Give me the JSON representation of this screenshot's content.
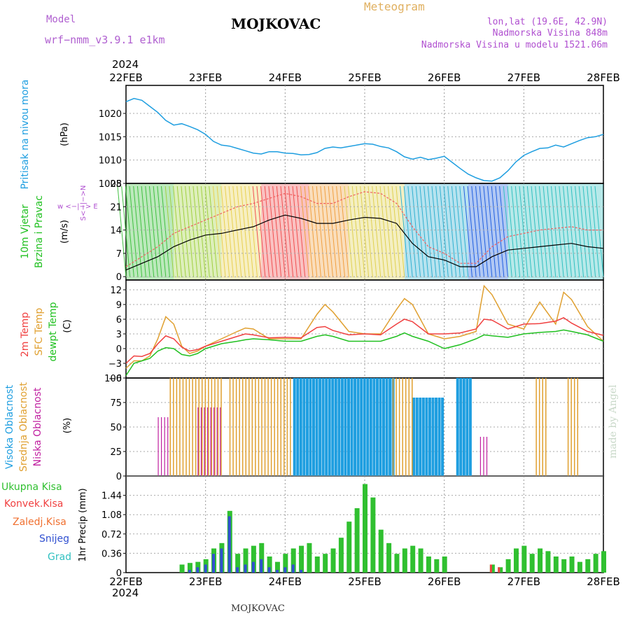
{
  "header": {
    "model_label": "Model",
    "model_value": "wrf−nmm_v3.9.1  e1km",
    "station": "MOJKOVAC",
    "product": "Meteogram",
    "lonlat": "lon,lat (19.6E, 42.9N)",
    "elevation": "Nadmorska Visina 848m",
    "model_elevation": "Nadmorska Visina u modelu 1521.06m",
    "year_top": "2024",
    "year_bottom": "2024",
    "footer_station": "MOJKOVAC",
    "signature": "made by Angel"
  },
  "colors": {
    "pressure": "#1e9ee0",
    "temp2m": "#f04040",
    "sfc": "#e0a030",
    "dewpt": "#20c020",
    "high_cloud": "#1e9ee0",
    "mid_cloud": "#e0a030",
    "low_cloud": "#c020a0",
    "precip_total": "#30c030",
    "precip_conv": "#f04040",
    "freezing": "#f07030",
    "snow": "#3050d0",
    "hail": "#30c0c0",
    "wind_label": "#20c020",
    "wind_compass": "#b050d0"
  },
  "chart_data": [
    {
      "type": "line",
      "name": "pressure",
      "xlabel": "",
      "x_ticks": [
        "22FEB",
        "23FEB",
        "24FEB",
        "25FEB",
        "26FEB",
        "27FEB",
        "28FEB"
      ],
      "ylabel_outer": "Pritisak na nivou mora",
      "ylabel_unit": "(hPa)",
      "ylim": [
        1005,
        1026
      ],
      "y_ticks": [
        "1005",
        "1010",
        "1015",
        "1020"
      ],
      "grid": true,
      "series": [
        {
          "name": "",
          "x": [
            0,
            0.1,
            0.2,
            0.3,
            0.4,
            0.5,
            0.6,
            0.7,
            0.8,
            0.9,
            1,
            1.1,
            1.2,
            1.3,
            1.4,
            1.5,
            1.6,
            1.7,
            1.8,
            1.9,
            2,
            2.1,
            2.2,
            2.3,
            2.4,
            2.5,
            2.6,
            2.7,
            2.8,
            2.9,
            3,
            3.1,
            3.2,
            3.3,
            3.4,
            3.5,
            3.6,
            3.7,
            3.8,
            3.9,
            4,
            4.1,
            4.2,
            4.3,
            4.4,
            4.5,
            4.6,
            4.7,
            4.8,
            4.9,
            5,
            5.1,
            5.2,
            5.3,
            5.4,
            5.5,
            5.6,
            5.7,
            5.8,
            5.9,
            6
          ],
          "values": [
            1022.5,
            1023.2,
            1022.8,
            1021.5,
            1020.2,
            1018.5,
            1017.5,
            1017.8,
            1017.2,
            1016.5,
            1015.5,
            1014,
            1013.2,
            1013,
            1012.5,
            1012,
            1011.5,
            1011.3,
            1011.8,
            1011.8,
            1011.5,
            1011.4,
            1011.1,
            1011.2,
            1011.6,
            1012.5,
            1012.8,
            1012.6,
            1012.9,
            1013.2,
            1013.5,
            1013.4,
            1012.9,
            1012.6,
            1011.8,
            1010.7,
            1010.2,
            1010.6,
            1010.1,
            1010.4,
            1010.8,
            1009.5,
            1008.2,
            1007,
            1006.2,
            1005.6,
            1005.5,
            1006.2,
            1007.7,
            1009.6,
            1011,
            1011.8,
            1012.5,
            1012.6,
            1013.2,
            1012.8,
            1013.5,
            1014.2,
            1014.8,
            1015,
            1015.5
          ]
        }
      ]
    },
    {
      "type": "line",
      "name": "wind",
      "xlabel": "",
      "ylabel_outer_1": "10m Vjetar",
      "ylabel_outer_2": "Brzina i Pravac",
      "ylabel_unit": "(m/s)",
      "compass": "w <−|−> E",
      "compass_v": "S<−|−>N",
      "ylim": [
        -1,
        28
      ],
      "y_ticks": [
        "0",
        "7",
        "14",
        "21",
        "28"
      ],
      "grid": true,
      "series": [
        {
          "name": "",
          "x": [
            0,
            0.2,
            0.4,
            0.6,
            0.8,
            1,
            1.2,
            1.4,
            1.6,
            1.8,
            2,
            2.2,
            2.4,
            2.6,
            2.8,
            3,
            3.2,
            3.4,
            3.6,
            3.8,
            4,
            4.2,
            4.4,
            4.6,
            4.8,
            5,
            5.2,
            5.4,
            5.6,
            5.8,
            6
          ],
          "values": [
            2,
            4,
            6,
            9,
            11,
            12.5,
            13,
            14,
            15,
            17,
            18.5,
            17.5,
            16,
            16,
            17,
            17.8,
            17.5,
            16,
            10,
            6,
            5,
            3,
            3,
            6,
            8,
            8.5,
            9,
            9.5,
            10,
            9,
            8.5
          ]
        },
        {
          "name": "",
          "x": [
            0,
            0.2,
            0.4,
            0.6,
            0.8,
            1,
            1.2,
            1.4,
            1.6,
            1.8,
            2,
            2.2,
            2.4,
            2.6,
            2.8,
            3,
            3.2,
            3.4,
            3.6,
            3.8,
            4,
            4.2,
            4.4,
            4.6,
            4.8,
            5,
            5.2,
            5.4,
            5.6,
            5.8,
            6
          ],
          "values": [
            3,
            6,
            9,
            13,
            15,
            17,
            19,
            21,
            22,
            23.5,
            25,
            24,
            22,
            22,
            24,
            25.5,
            25,
            22,
            15,
            9,
            7,
            4,
            4,
            9,
            12,
            13,
            14,
            14.5,
            15,
            14,
            14
          ]
        }
      ]
    },
    {
      "type": "line",
      "name": "temperature",
      "xlabel": "",
      "ylabel_outer_1": "2m Temp",
      "ylabel_outer_2": "SFC Temp",
      "ylabel_outer_3": "dewpt Temp",
      "ylabel_unit": "(C)",
      "ylim": [
        -6,
        14
      ],
      "y_ticks": [
        "−6",
        "−3",
        "0",
        "3",
        "6",
        "9",
        "12"
      ],
      "grid": true,
      "series": [
        {
          "name": "2m Temp",
          "x": [
            0,
            0.1,
            0.2,
            0.3,
            0.4,
            0.5,
            0.6,
            0.7,
            0.8,
            0.9,
            1,
            1.2,
            1.4,
            1.5,
            1.6,
            1.8,
            2,
            2.2,
            2.4,
            2.5,
            2.6,
            2.8,
            3,
            3.2,
            3.4,
            3.5,
            3.6,
            3.8,
            4,
            4.2,
            4.4,
            4.5,
            4.6,
            4.8,
            5,
            5.2,
            5.4,
            5.5,
            5.6,
            5.8,
            6
          ],
          "values": [
            -3,
            -1.5,
            -1.6,
            -1,
            1,
            2.6,
            2,
            0.3,
            -0.5,
            -0.2,
            0.5,
            1.5,
            2.5,
            3,
            2.8,
            2.2,
            2.3,
            2.2,
            4.3,
            4.5,
            3.7,
            2.8,
            3,
            2.8,
            5,
            6,
            5.5,
            3,
            3,
            3.2,
            4,
            6,
            5.8,
            4,
            5,
            5.1,
            5.6,
            6.3,
            5.2,
            3.5,
            2.7
          ]
        },
        {
          "name": "SFC Temp",
          "x": [
            0,
            0.1,
            0.2,
            0.3,
            0.4,
            0.5,
            0.6,
            0.7,
            0.8,
            0.9,
            1,
            1.2,
            1.4,
            1.5,
            1.6,
            1.8,
            2,
            2.2,
            2.4,
            2.5,
            2.6,
            2.8,
            3,
            3.2,
            3.4,
            3.5,
            3.6,
            3.8,
            4,
            4.2,
            4.4,
            4.5,
            4.6,
            4.8,
            5,
            5.2,
            5.4,
            5.5,
            5.6,
            5.8,
            6
          ],
          "values": [
            -4,
            -2.5,
            -2.5,
            -1.5,
            2,
            6.5,
            5,
            0.5,
            -1,
            -0.5,
            0.5,
            2,
            3.5,
            4.2,
            4,
            2,
            2,
            2,
            7,
            9,
            7.5,
            3.5,
            3,
            3,
            8,
            10.2,
            9,
            3,
            2,
            2.5,
            3.5,
            12.8,
            11,
            5,
            4,
            9.5,
            5,
            11.5,
            10,
            4.5,
            1.5
          ]
        },
        {
          "name": "dewpt Temp",
          "x": [
            0,
            0.1,
            0.2,
            0.3,
            0.4,
            0.5,
            0.6,
            0.7,
            0.8,
            0.9,
            1,
            1.2,
            1.4,
            1.5,
            1.6,
            1.8,
            2,
            2.2,
            2.4,
            2.5,
            2.6,
            2.8,
            3,
            3.2,
            3.4,
            3.5,
            3.6,
            3.8,
            4,
            4.2,
            4.4,
            4.5,
            4.6,
            4.8,
            5,
            5.2,
            5.4,
            5.5,
            5.6,
            5.8,
            6
          ],
          "values": [
            -5.5,
            -3,
            -2.5,
            -2,
            -0.5,
            0.2,
            0,
            -1.2,
            -1.5,
            -1,
            0,
            1,
            1.5,
            1.8,
            2,
            1.8,
            1.5,
            1.5,
            2.5,
            2.8,
            2.5,
            1.5,
            1.5,
            1.5,
            2.5,
            3.2,
            2.5,
            1.5,
            0,
            0.8,
            2,
            2.8,
            2.6,
            2.3,
            3,
            3.3,
            3.5,
            3.8,
            3.5,
            2.8,
            1.5
          ]
        }
      ]
    },
    {
      "type": "bar",
      "name": "clouds",
      "xlabel": "",
      "ylabel_outer_1": "Visoka Oblacnost",
      "ylabel_outer_2": "Srednja Oblacnost",
      "ylabel_outer_3": "Niska Oblacnost",
      "ylabel_unit": "(%)",
      "ylim": [
        0,
        100
      ],
      "y_ticks": [
        "0",
        "25",
        "50",
        "75",
        "100"
      ],
      "grid": true,
      "high": [
        [
          2.1,
          3.35,
          100
        ],
        [
          3.6,
          4.0,
          80
        ],
        [
          4.15,
          4.35,
          100
        ]
      ],
      "mid": [
        [
          0.55,
          1.2,
          100
        ],
        [
          1.3,
          2.1,
          100
        ],
        [
          3.35,
          3.6,
          100
        ],
        [
          5.15,
          5.3,
          100
        ],
        [
          5.55,
          5.7,
          100
        ]
      ],
      "low": [
        [
          0.4,
          0.55,
          60
        ],
        [
          0.9,
          1.2,
          70
        ],
        [
          4.45,
          4.55,
          40
        ]
      ]
    },
    {
      "type": "bar",
      "name": "precipitation",
      "xlabel": "",
      "ylabel_outer_1": "Ukupna Kisa",
      "ylabel_outer_2": "Konvek.Kisa",
      "ylabel_outer_3": "Zaledj.Kisa",
      "ylabel_outer_4": "Snijeg",
      "ylabel_outer_5": "Grad",
      "ylabel_unit": "1hr Precip (mm)",
      "ylim": [
        0,
        1.8
      ],
      "y_ticks": [
        "0",
        "0.36",
        "0.72",
        "1.08",
        "1.44"
      ],
      "grid": true,
      "total": [
        0,
        0,
        0,
        0,
        0,
        0,
        0,
        0.15,
        0.18,
        0.2,
        0.25,
        0.45,
        0.55,
        1.15,
        0.35,
        0.45,
        0.5,
        0.55,
        0.3,
        0.2,
        0.35,
        0.45,
        0.5,
        0.55,
        0.3,
        0.35,
        0.45,
        0.65,
        0.95,
        1.2,
        1.65,
        1.4,
        0.8,
        0.55,
        0.35,
        0.45,
        0.5,
        0.45,
        0.3,
        0.25,
        0.3,
        0,
        0,
        0,
        0,
        0,
        0.15,
        0.1,
        0.25,
        0.45,
        0.5,
        0.35,
        0.45,
        0.4,
        0.3,
        0.25,
        0.3,
        0.2,
        0.25,
        0.35,
        0.4
      ],
      "snow": [
        0,
        0,
        0,
        0,
        0,
        0,
        0,
        0,
        0.05,
        0.1,
        0.15,
        0.35,
        0.45,
        1.05,
        0.1,
        0.15,
        0.2,
        0.25,
        0.1,
        0.05,
        0.1,
        0.15,
        0.05,
        0,
        0,
        0,
        0,
        0,
        0,
        0,
        0,
        0,
        0,
        0,
        0,
        0,
        0,
        0,
        0,
        0,
        0,
        0,
        0,
        0,
        0,
        0,
        0,
        0,
        0,
        0,
        0,
        0,
        0,
        0,
        0,
        0,
        0,
        0,
        0,
        0,
        0
      ],
      "conv": [
        0,
        0,
        0,
        0,
        0,
        0,
        0,
        0,
        0,
        0,
        0,
        0,
        0,
        0,
        0,
        0,
        0,
        0,
        0,
        0,
        0,
        0,
        0,
        0,
        0,
        0,
        0,
        0,
        0,
        0,
        0,
        0,
        0,
        0,
        0,
        0,
        0,
        0,
        0,
        0,
        0,
        0,
        0,
        0,
        0,
        0,
        0.15,
        0.1,
        0,
        0,
        0,
        0,
        0,
        0,
        0,
        0,
        0,
        0,
        0,
        0,
        0
      ]
    }
  ]
}
